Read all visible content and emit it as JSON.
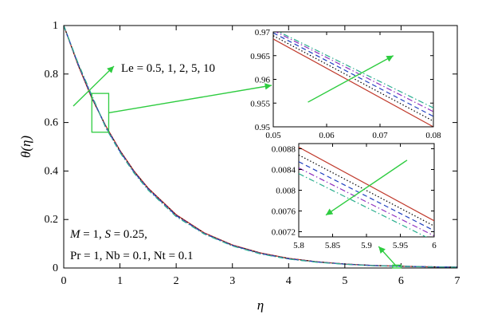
{
  "chart_data": [
    {
      "id": "main",
      "type": "line",
      "xlabel": "η",
      "ylabel": "θ(η)",
      "xlim": [
        0,
        7
      ],
      "ylim": [
        0,
        1
      ],
      "xticks": [
        0,
        1,
        2,
        3,
        4,
        5,
        6,
        7
      ],
      "yticks": [
        0,
        0.2,
        0.4,
        0.6,
        0.8,
        1
      ],
      "xtick_labels": [
        "0",
        "1",
        "2",
        "3",
        "4",
        "5",
        "6",
        "7"
      ],
      "ytick_labels": [
        "0",
        "0.2",
        "0.4",
        "0.6",
        "0.8",
        "1"
      ],
      "grid": false,
      "x": [
        0,
        0.25,
        0.5,
        0.75,
        1,
        1.25,
        1.5,
        2,
        2.5,
        3,
        3.5,
        4,
        4.5,
        5,
        5.5,
        6,
        6.5,
        7
      ],
      "series": [
        {
          "values": [
            1,
            0.84,
            0.7,
            0.585,
            0.485,
            0.4,
            0.33,
            0.22,
            0.145,
            0.095,
            0.062,
            0.04,
            0.026,
            0.0165,
            0.0105,
            0.0074,
            0.005,
            0.0035
          ],
          "color": "#c0392b",
          "dash": "solid"
        },
        {
          "values": [
            1,
            0.842,
            0.703,
            0.583,
            0.483,
            0.398,
            0.328,
            0.218,
            0.143,
            0.094,
            0.061,
            0.039,
            0.0255,
            0.0162,
            0.0103,
            0.0072,
            0.0049,
            0.0034
          ],
          "color": "#000000",
          "dash": "dotted"
        },
        {
          "values": [
            1,
            0.844,
            0.706,
            0.581,
            0.481,
            0.396,
            0.326,
            0.216,
            0.142,
            0.093,
            0.06,
            0.038,
            0.025,
            0.016,
            0.0101,
            0.0071,
            0.0048,
            0.0033
          ],
          "color": "#1f3fbf",
          "dash": "dashed"
        },
        {
          "values": [
            1,
            0.846,
            0.709,
            0.579,
            0.479,
            0.394,
            0.324,
            0.214,
            0.141,
            0.092,
            0.059,
            0.0375,
            0.0245,
            0.0158,
            0.0099,
            0.007,
            0.0047,
            0.0033
          ],
          "color": "#8e2fbf",
          "dash": "dashdot"
        },
        {
          "values": [
            1,
            0.848,
            0.712,
            0.577,
            0.477,
            0.392,
            0.322,
            0.212,
            0.14,
            0.091,
            0.058,
            0.037,
            0.024,
            0.0155,
            0.0097,
            0.0069,
            0.0046,
            0.0032
          ],
          "color": "#2aaf8f",
          "dash": "dashdot"
        }
      ],
      "annotations": [
        {
          "text": "Le = 0.5, 1, 2, 5, 10"
        },
        {
          "text_parts": [
            {
              "t": "M",
              "i": true
            },
            {
              "t": " = 1, ",
              "i": false
            },
            {
              "t": "S",
              "i": true
            },
            {
              "t": " = 0.25,",
              "i": false
            }
          ]
        },
        {
          "text_parts": [
            {
              "t": "Pr = 1, Nb = 0.1, Nt = 0.1",
              "i": false
            }
          ]
        }
      ]
    },
    {
      "id": "inset-top",
      "type": "line",
      "xlim": [
        0.05,
        0.08
      ],
      "ylim": [
        0.95,
        0.97
      ],
      "xticks": [
        0.05,
        0.06,
        0.07,
        0.08
      ],
      "yticks": [
        0.95,
        0.955,
        0.96,
        0.965,
        0.97
      ],
      "xtick_labels": [
        "0.05",
        "0.06",
        "0.07",
        "0.08"
      ],
      "ytick_labels": [
        "0.95",
        "0.955",
        "0.96",
        "0.965",
        "0.97"
      ],
      "x": [
        0.05,
        0.08
      ],
      "series": [
        {
          "values": [
            0.9685,
            0.95
          ],
          "color": "#c0392b",
          "dash": "solid"
        },
        {
          "values": [
            0.9692,
            0.9512
          ],
          "color": "#000000",
          "dash": "dotted"
        },
        {
          "values": [
            0.9698,
            0.9522
          ],
          "color": "#1f3fbf",
          "dash": "dashed"
        },
        {
          "values": [
            0.9703,
            0.9532
          ],
          "color": "#8e2fbf",
          "dash": "dashdot"
        },
        {
          "values": [
            0.9706,
            0.954
          ],
          "color": "#2aaf8f",
          "dash": "dashdot"
        }
      ]
    },
    {
      "id": "inset-bottom",
      "type": "line",
      "xlim": [
        5.8,
        6
      ],
      "ylim": [
        0.0071,
        0.0089
      ],
      "xticks": [
        5.8,
        5.85,
        5.9,
        5.95,
        6
      ],
      "yticks": [
        0.0072,
        0.0076,
        0.008,
        0.0084,
        0.0088
      ],
      "xtick_labels": [
        "5.8",
        "5.85",
        "5.9",
        "5.95",
        "6"
      ],
      "ytick_labels": [
        "0.0072",
        "0.0076",
        "0.008",
        "0.0084",
        "0.0088"
      ],
      "x": [
        5.8,
        6
      ],
      "series": [
        {
          "values": [
            0.00883,
            0.00741
          ],
          "color": "#c0392b",
          "dash": "solid"
        },
        {
          "values": [
            0.00868,
            0.00731
          ],
          "color": "#000000",
          "dash": "dotted"
        },
        {
          "values": [
            0.00855,
            0.00722
          ],
          "color": "#1f3fbf",
          "dash": "dashed"
        },
        {
          "values": [
            0.00843,
            0.00712
          ],
          "color": "#8e2fbf",
          "dash": "dashdot"
        },
        {
          "values": [
            0.00832,
            0.00702
          ],
          "color": "#2aaf8f",
          "dash": "dashdot"
        }
      ]
    }
  ],
  "colors": {
    "arrow": "#2ecc40",
    "frame": "#000000"
  }
}
